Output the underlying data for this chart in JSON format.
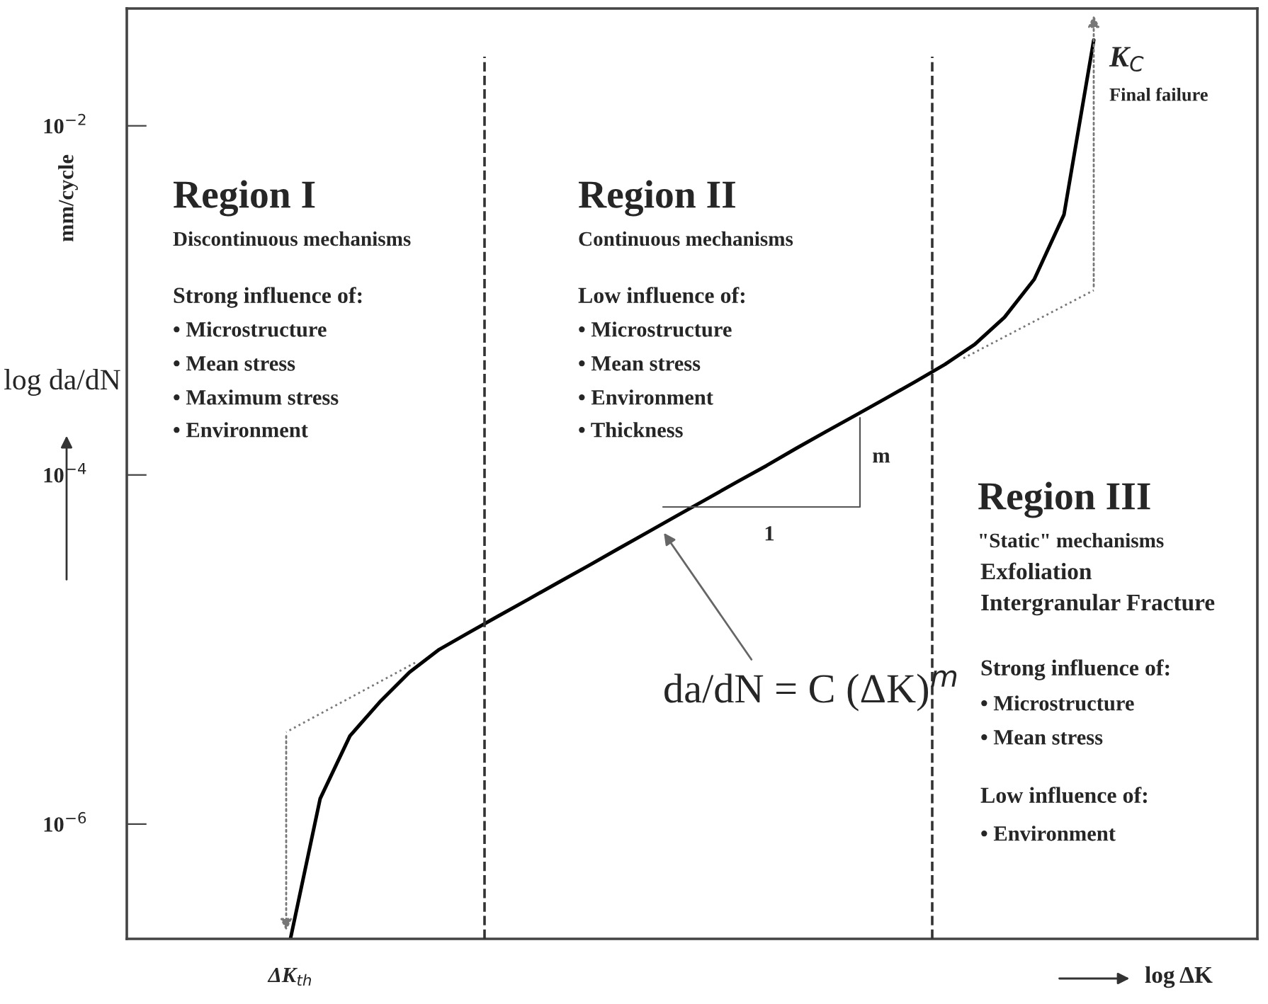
{
  "chart_data": {
    "type": "line",
    "categories": [
      null,
      null,
      null,
      null,
      null,
      null,
      null,
      null,
      null,
      null,
      null,
      null,
      null,
      null,
      null,
      null,
      null,
      null,
      null,
      null,
      null,
      null,
      null,
      null,
      null,
      null,
      null,
      null,
      null,
      null,
      null,
      null,
      null,
      null,
      null,
      null,
      null,
      null
    ],
    "series": [
      {
        "color": "#000000",
        "values": [
          null,
          null,
          null,
          null,
          null,
          2.2e-07,
          1.4e-06,
          3.2e-06,
          5e-06,
          7.4e-06,
          1e-05,
          1.25e-05,
          1.56e-05,
          1.94e-05,
          2.42e-05,
          3.01e-05,
          3.76e-05,
          4.69e-05,
          5.85e-05,
          7.29e-05,
          9.1e-05,
          0.000113,
          0.000142,
          0.000177,
          0.00022,
          0.000274,
          0.000342,
          0.00043,
          0.00056,
          0.0008,
          0.00132,
          0.0031,
          0.031,
          null,
          null,
          null,
          null,
          null
        ]
      }
    ],
    "log": "y",
    "ylim": [
      2.2e-07,
      0.047
    ],
    "yticks": [
      {
        "value": 0.01,
        "label": "10$^{−2}$"
      },
      {
        "value": 0.0001,
        "label": "10$^{−4}$"
      },
      {
        "value": 1e-06,
        "label": "10$^{−6}$"
      }
    ],
    "ylabel": "log da/dN",
    "xlabel": "log ΔK",
    "tick_labels": "y",
    "annotations": [
      "Region I",
      "Discontinuous mechanisms",
      "Strong influence of:",
      "• Microstructure",
      "• Mean stress",
      "• Maximum stress",
      "• Environment",
      "Region II",
      "Continuous mechanisms",
      "Low influence of:",
      "• Microstructure",
      "• Mean stress",
      "• Environment",
      "• Thickness",
      "Region III",
      "\"Static\" mechanisms",
      "Exfoliation",
      "Intergranular Fracture",
      "Strong influence of:",
      "• Microstructure",
      "• Mean stress",
      "Low influence of:",
      "• Environment",
      "K$_{C}$",
      "Final failure",
      "m",
      "1",
      "da/dN = C (ΔK)$^{m}$",
      "ΔK$_{th}$",
      "mm/cycle"
    ]
  }
}
